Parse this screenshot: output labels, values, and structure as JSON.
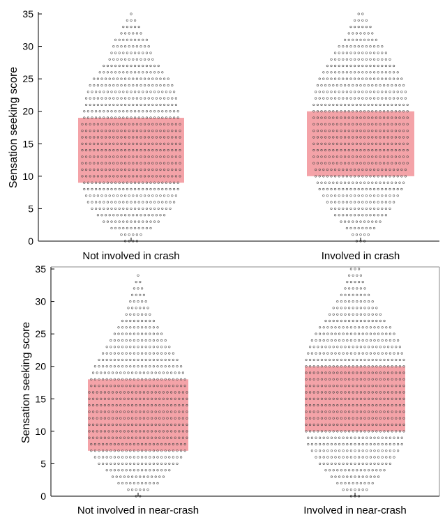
{
  "chart_data": [
    {
      "type": "scatter",
      "subtype": "beeswarm-with-iqr-box",
      "ylabel": "Sensation seeking score",
      "ylim": [
        0,
        35
      ],
      "yticks": [
        0,
        5,
        10,
        15,
        20,
        25,
        30,
        35
      ],
      "groups": [
        {
          "label": "Not involved in crash",
          "box": {
            "q1": 9,
            "q3": 19
          },
          "counts": [
            4,
            6,
            11,
            15,
            18,
            21,
            23,
            24,
            25,
            25,
            26,
            26,
            26,
            26,
            26,
            26,
            26,
            26,
            26,
            25,
            25,
            24,
            24,
            23,
            22,
            20,
            17,
            15,
            12,
            11,
            10,
            9,
            6,
            5,
            3,
            1
          ]
        },
        {
          "label": "Involved in crash",
          "box": {
            "q1": 10,
            "q3": 20
          },
          "counts": [
            3,
            5,
            8,
            11,
            14,
            16,
            18,
            20,
            22,
            23,
            24,
            24,
            25,
            25,
            25,
            25,
            25,
            25,
            25,
            25,
            25,
            25,
            24,
            24,
            23,
            22,
            20,
            18,
            16,
            14,
            12,
            9,
            7,
            6,
            4,
            2
          ]
        }
      ],
      "box_color": "#f4a3a8"
    },
    {
      "type": "scatter",
      "subtype": "beeswarm-with-iqr-box",
      "ylabel": "Sensation seeking score",
      "ylim": [
        0,
        35
      ],
      "yticks": [
        0,
        5,
        10,
        15,
        20,
        25,
        30,
        35
      ],
      "frame": true,
      "groups": [
        {
          "label": "Not involved in near-crash",
          "box": {
            "q1": 7,
            "q3": 18
          },
          "counts": [
            2,
            6,
            11,
            14,
            17,
            21,
            23,
            25,
            25,
            26,
            26,
            26,
            26,
            26,
            26,
            26,
            26,
            25,
            25,
            24,
            23,
            21,
            19,
            17,
            15,
            13,
            11,
            9,
            7,
            6,
            5,
            4,
            3,
            2,
            1,
            0
          ]
        },
        {
          "label": "Involved in near-crash",
          "box": {
            "q1": 10,
            "q3": 20
          },
          "counts": [
            3,
            7,
            10,
            13,
            16,
            19,
            21,
            23,
            25,
            25,
            26,
            26,
            26,
            26,
            26,
            26,
            26,
            26,
            26,
            26,
            26,
            26,
            25,
            24,
            23,
            21,
            19,
            16,
            14,
            12,
            10,
            8,
            6,
            5,
            4,
            3
          ]
        }
      ],
      "box_color": "#f4a3a8"
    }
  ]
}
